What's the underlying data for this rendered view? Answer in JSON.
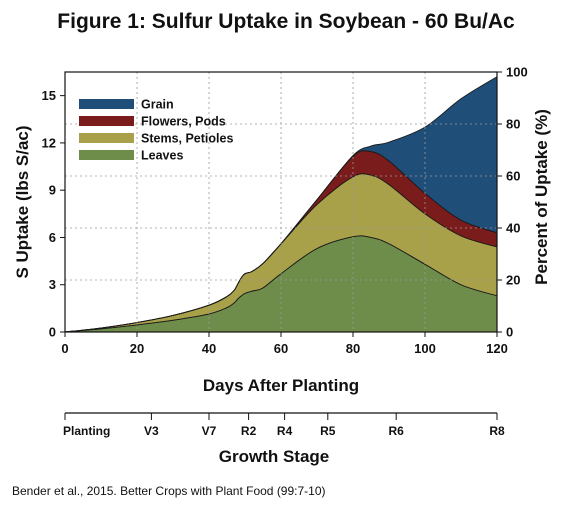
{
  "chart_data": {
    "type": "area",
    "title": "Figure 1: Sulfur Uptake in Soybean - 60 Bu/Ac",
    "xlabel": "Days After Planting",
    "ylabel": "S Uptake (lbs S/ac)",
    "y2label": "Percent of Uptake (%)",
    "xlim": [
      0,
      120
    ],
    "ylim": [
      0,
      16.5
    ],
    "y2lim": [
      0,
      100
    ],
    "x_ticks": [
      "0",
      "20",
      "40",
      "60",
      "80",
      "100",
      "120"
    ],
    "y_ticks": [
      "0",
      "3",
      "6",
      "9",
      "12",
      "15"
    ],
    "y2_ticks": [
      "0",
      "20",
      "40",
      "60",
      "80",
      "100"
    ],
    "grid": true,
    "legend_position": "top-left",
    "stacked": true,
    "x": [
      0,
      10,
      20,
      30,
      40,
      45,
      47,
      48,
      49,
      50,
      52,
      55,
      60,
      70,
      80,
      85,
      90,
      100,
      110,
      120
    ],
    "series": [
      {
        "name": "Leaves",
        "color": "#6e8c4a",
        "values": [
          0,
          0.2,
          0.45,
          0.75,
          1.15,
          1.55,
          1.85,
          2.1,
          2.3,
          2.45,
          2.6,
          2.8,
          3.7,
          5.3,
          6.05,
          6.0,
          5.6,
          4.3,
          3.0,
          2.3
        ]
      },
      {
        "name": "Stems, Petioles",
        "color": "#a8a14a",
        "values": [
          0,
          0.05,
          0.15,
          0.3,
          0.55,
          0.7,
          0.8,
          0.95,
          1.15,
          1.25,
          1.25,
          1.55,
          1.9,
          2.8,
          3.8,
          3.95,
          3.75,
          3.2,
          3.1,
          3.1
        ]
      },
      {
        "name": "Flowers, Pods",
        "color": "#7a1c1c",
        "values": [
          0,
          0,
          0,
          0,
          0,
          0,
          0,
          0,
          0,
          0,
          0,
          0,
          0,
          0.3,
          1.3,
          1.5,
          1.5,
          1.3,
          1.0,
          0.9
        ]
      },
      {
        "name": "Grain",
        "color": "#1f4e79",
        "values": [
          0,
          0,
          0,
          0,
          0,
          0,
          0,
          0,
          0,
          0,
          0,
          0,
          0,
          0,
          0.05,
          0.35,
          1.2,
          4.2,
          7.7,
          9.9
        ]
      }
    ],
    "growth_stages": {
      "label": "Growth Stage",
      "stages": [
        {
          "name": "Planting",
          "day": 0
        },
        {
          "name": "V3",
          "day": 24
        },
        {
          "name": "V7",
          "day": 40
        },
        {
          "name": "R2",
          "day": 51
        },
        {
          "name": "R4",
          "day": 61
        },
        {
          "name": "R5",
          "day": 73
        },
        {
          "name": "R6",
          "day": 92
        },
        {
          "name": "R8",
          "day": 120
        }
      ]
    },
    "source": "Bender et al., 2015. Better Crops with Plant Food (99:7-10)"
  }
}
